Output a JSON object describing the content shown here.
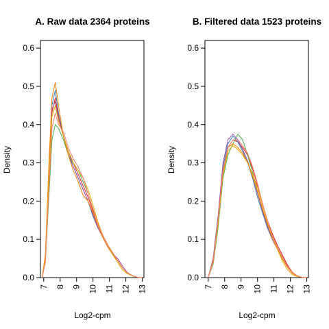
{
  "chart_data": [
    {
      "type": "line",
      "title": "A. Raw data  2364  proteins",
      "xlabel": "Log2-cpm",
      "ylabel": "Density",
      "xlim": [
        6.8,
        13.1
      ],
      "ylim": [
        0,
        0.62
      ],
      "x_ticks": [
        "7",
        "8",
        "9",
        "10",
        "11",
        "12",
        "13"
      ],
      "y_ticks": [
        "0.0",
        "0.1",
        "0.2",
        "0.3",
        "0.4",
        "0.5",
        "0.6"
      ],
      "grid": false,
      "series": [
        {
          "color": "#e41a1c",
          "x": [
            6.9,
            7.1,
            7.3,
            7.5,
            7.7,
            7.9,
            8.2,
            8.5,
            8.8,
            9.1,
            9.4,
            9.7,
            10.0,
            10.3,
            10.6,
            10.9,
            11.2,
            11.5,
            11.8,
            12.1,
            12.4,
            12.7,
            13.0
          ],
          "y": [
            0.0,
            0.05,
            0.25,
            0.43,
            0.47,
            0.42,
            0.37,
            0.33,
            0.3,
            0.27,
            0.24,
            0.21,
            0.175,
            0.14,
            0.11,
            0.085,
            0.065,
            0.045,
            0.025,
            0.012,
            0.005,
            0.001,
            0.0
          ]
        },
        {
          "color": "#377eb8",
          "x": [
            6.9,
            7.1,
            7.3,
            7.5,
            7.7,
            7.9,
            8.2,
            8.5,
            8.8,
            9.1,
            9.4,
            9.7,
            10.0,
            10.3,
            10.6,
            10.9,
            11.2,
            11.5,
            11.8,
            12.1,
            12.4,
            12.7,
            13.0
          ],
          "y": [
            0.0,
            0.05,
            0.26,
            0.45,
            0.49,
            0.43,
            0.37,
            0.32,
            0.29,
            0.26,
            0.23,
            0.2,
            0.16,
            0.13,
            0.105,
            0.08,
            0.06,
            0.045,
            0.025,
            0.012,
            0.005,
            0.001,
            0.0
          ]
        },
        {
          "color": "#4daf4a",
          "x": [
            6.9,
            7.1,
            7.3,
            7.5,
            7.7,
            7.9,
            8.2,
            8.5,
            8.8,
            9.1,
            9.4,
            9.7,
            10.0,
            10.3,
            10.6,
            10.9,
            11.2,
            11.5,
            11.8,
            12.1,
            12.4,
            12.7,
            13.0
          ],
          "y": [
            0.0,
            0.04,
            0.2,
            0.36,
            0.4,
            0.39,
            0.36,
            0.32,
            0.3,
            0.28,
            0.25,
            0.22,
            0.18,
            0.14,
            0.11,
            0.085,
            0.065,
            0.045,
            0.025,
            0.012,
            0.005,
            0.001,
            0.0
          ]
        },
        {
          "color": "#984ea3",
          "x": [
            6.9,
            7.1,
            7.3,
            7.5,
            7.7,
            7.9,
            8.2,
            8.5,
            8.8,
            9.1,
            9.4,
            9.7,
            10.0,
            10.3,
            10.6,
            10.9,
            11.2,
            11.5,
            11.8,
            12.1,
            12.4,
            12.7,
            13.0
          ],
          "y": [
            0.0,
            0.05,
            0.25,
            0.44,
            0.46,
            0.41,
            0.37,
            0.33,
            0.29,
            0.26,
            0.23,
            0.2,
            0.165,
            0.13,
            0.105,
            0.08,
            0.062,
            0.05,
            0.03,
            0.013,
            0.005,
            0.001,
            0.0
          ]
        },
        {
          "color": "#ff7f00",
          "x": [
            6.9,
            7.1,
            7.3,
            7.5,
            7.7,
            7.9,
            8.2,
            8.5,
            8.8,
            9.1,
            9.4,
            9.7,
            10.0,
            10.3,
            10.6,
            10.9,
            11.2,
            11.5,
            11.8,
            12.1,
            12.4,
            12.7,
            13.0
          ],
          "y": [
            0.0,
            0.06,
            0.28,
            0.47,
            0.51,
            0.45,
            0.37,
            0.32,
            0.28,
            0.25,
            0.215,
            0.2,
            0.17,
            0.135,
            0.105,
            0.08,
            0.06,
            0.045,
            0.025,
            0.012,
            0.005,
            0.001,
            0.0
          ]
        },
        {
          "color": "#e6ab02",
          "x": [
            6.9,
            7.1,
            7.3,
            7.5,
            7.7,
            7.9,
            8.2,
            8.5,
            8.8,
            9.1,
            9.4,
            9.7,
            10.0,
            10.3,
            10.6,
            10.9,
            11.2,
            11.5,
            11.8,
            12.1,
            12.4,
            12.7,
            13.0
          ],
          "y": [
            0.0,
            0.05,
            0.24,
            0.42,
            0.45,
            0.41,
            0.37,
            0.33,
            0.3,
            0.28,
            0.26,
            0.23,
            0.19,
            0.145,
            0.11,
            0.085,
            0.06,
            0.04,
            0.02,
            0.01,
            0.004,
            0.001,
            0.0
          ]
        },
        {
          "color": "#fb8072",
          "x": [
            6.9,
            7.1,
            7.3,
            7.5,
            7.7,
            7.9,
            8.2,
            8.5,
            8.8,
            9.1,
            9.4,
            9.7,
            10.0,
            10.3,
            10.6,
            10.9,
            11.2,
            11.5,
            11.8,
            12.1,
            12.4,
            12.7,
            13.0
          ],
          "y": [
            0.0,
            0.04,
            0.22,
            0.39,
            0.43,
            0.4,
            0.38,
            0.34,
            0.31,
            0.29,
            0.26,
            0.22,
            0.18,
            0.14,
            0.11,
            0.085,
            0.065,
            0.045,
            0.025,
            0.012,
            0.005,
            0.001,
            0.0
          ]
        }
      ]
    },
    {
      "type": "line",
      "title": "B. Filtered data 1523  proteins",
      "xlabel": "Log2-cpm",
      "ylabel": "Density",
      "xlim": [
        6.8,
        13.1
      ],
      "ylim": [
        0,
        0.62
      ],
      "x_ticks": [
        "7",
        "8",
        "9",
        "10",
        "11",
        "12",
        "13"
      ],
      "y_ticks": [
        "0.0",
        "0.1",
        "0.2",
        "0.3",
        "0.4",
        "0.5",
        "0.6"
      ],
      "grid": false,
      "series": [
        {
          "color": "#e41a1c",
          "x": [
            7.0,
            7.3,
            7.6,
            7.9,
            8.2,
            8.5,
            8.8,
            9.1,
            9.4,
            9.7,
            10.0,
            10.3,
            10.6,
            10.9,
            11.2,
            11.5,
            11.8,
            12.1,
            12.4,
            12.7,
            13.0
          ],
          "y": [
            0.0,
            0.04,
            0.14,
            0.27,
            0.34,
            0.36,
            0.355,
            0.34,
            0.32,
            0.285,
            0.24,
            0.19,
            0.15,
            0.115,
            0.085,
            0.06,
            0.035,
            0.015,
            0.005,
            0.001,
            0.0
          ]
        },
        {
          "color": "#377eb8",
          "x": [
            7.0,
            7.3,
            7.6,
            7.9,
            8.2,
            8.5,
            8.8,
            9.1,
            9.4,
            9.7,
            10.0,
            10.3,
            10.6,
            10.9,
            11.2,
            11.5,
            11.8,
            12.1,
            12.4,
            12.7,
            13.0
          ],
          "y": [
            0.0,
            0.05,
            0.16,
            0.29,
            0.35,
            0.37,
            0.355,
            0.33,
            0.3,
            0.26,
            0.21,
            0.17,
            0.13,
            0.1,
            0.075,
            0.05,
            0.03,
            0.012,
            0.004,
            0.001,
            0.0
          ]
        },
        {
          "color": "#4daf4a",
          "x": [
            7.0,
            7.3,
            7.6,
            7.9,
            8.2,
            8.5,
            8.8,
            9.1,
            9.4,
            9.7,
            10.0,
            10.3,
            10.6,
            10.9,
            11.2,
            11.5,
            11.8,
            12.1,
            12.4,
            12.7,
            13.0
          ],
          "y": [
            0.0,
            0.035,
            0.13,
            0.26,
            0.32,
            0.35,
            0.375,
            0.36,
            0.32,
            0.275,
            0.225,
            0.18,
            0.14,
            0.105,
            0.08,
            0.055,
            0.032,
            0.014,
            0.005,
            0.001,
            0.0
          ]
        },
        {
          "color": "#984ea3",
          "x": [
            7.0,
            7.3,
            7.6,
            7.9,
            8.2,
            8.5,
            8.8,
            9.1,
            9.4,
            9.7,
            10.0,
            10.3,
            10.6,
            10.9,
            11.2,
            11.5,
            11.8,
            12.1,
            12.4,
            12.7,
            13.0
          ],
          "y": [
            0.0,
            0.05,
            0.16,
            0.3,
            0.36,
            0.375,
            0.36,
            0.335,
            0.305,
            0.265,
            0.22,
            0.175,
            0.135,
            0.1,
            0.075,
            0.05,
            0.03,
            0.012,
            0.004,
            0.001,
            0.0
          ]
        },
        {
          "color": "#ff7f00",
          "x": [
            7.0,
            7.3,
            7.6,
            7.9,
            8.2,
            8.5,
            8.8,
            9.1,
            9.4,
            9.7,
            10.0,
            10.3,
            10.6,
            10.9,
            11.2,
            11.5,
            11.8,
            12.1,
            12.4,
            12.7,
            13.0
          ],
          "y": [
            0.0,
            0.045,
            0.15,
            0.28,
            0.34,
            0.35,
            0.34,
            0.325,
            0.3,
            0.265,
            0.225,
            0.18,
            0.14,
            0.105,
            0.075,
            0.05,
            0.028,
            0.012,
            0.004,
            0.001,
            0.0
          ]
        },
        {
          "color": "#e6ab02",
          "x": [
            7.0,
            7.3,
            7.6,
            7.9,
            8.2,
            8.5,
            8.8,
            9.1,
            9.4,
            9.7,
            10.0,
            10.3,
            10.6,
            10.9,
            11.2,
            11.5,
            11.8,
            12.1,
            12.4,
            12.7,
            13.0
          ],
          "y": [
            0.0,
            0.04,
            0.14,
            0.27,
            0.33,
            0.345,
            0.335,
            0.32,
            0.3,
            0.27,
            0.235,
            0.19,
            0.145,
            0.105,
            0.075,
            0.045,
            0.022,
            0.008,
            0.003,
            0.001,
            0.0
          ]
        },
        {
          "color": "#fb8072",
          "x": [
            7.0,
            7.3,
            7.6,
            7.9,
            8.2,
            8.5,
            8.8,
            9.1,
            9.4,
            9.7,
            10.0,
            10.3,
            10.6,
            10.9,
            11.2,
            11.5,
            11.8,
            12.1,
            12.4,
            12.7,
            13.0
          ],
          "y": [
            0.0,
            0.04,
            0.15,
            0.28,
            0.34,
            0.36,
            0.36,
            0.345,
            0.325,
            0.29,
            0.245,
            0.195,
            0.15,
            0.11,
            0.08,
            0.055,
            0.032,
            0.014,
            0.005,
            0.001,
            0.0
          ]
        }
      ]
    }
  ]
}
